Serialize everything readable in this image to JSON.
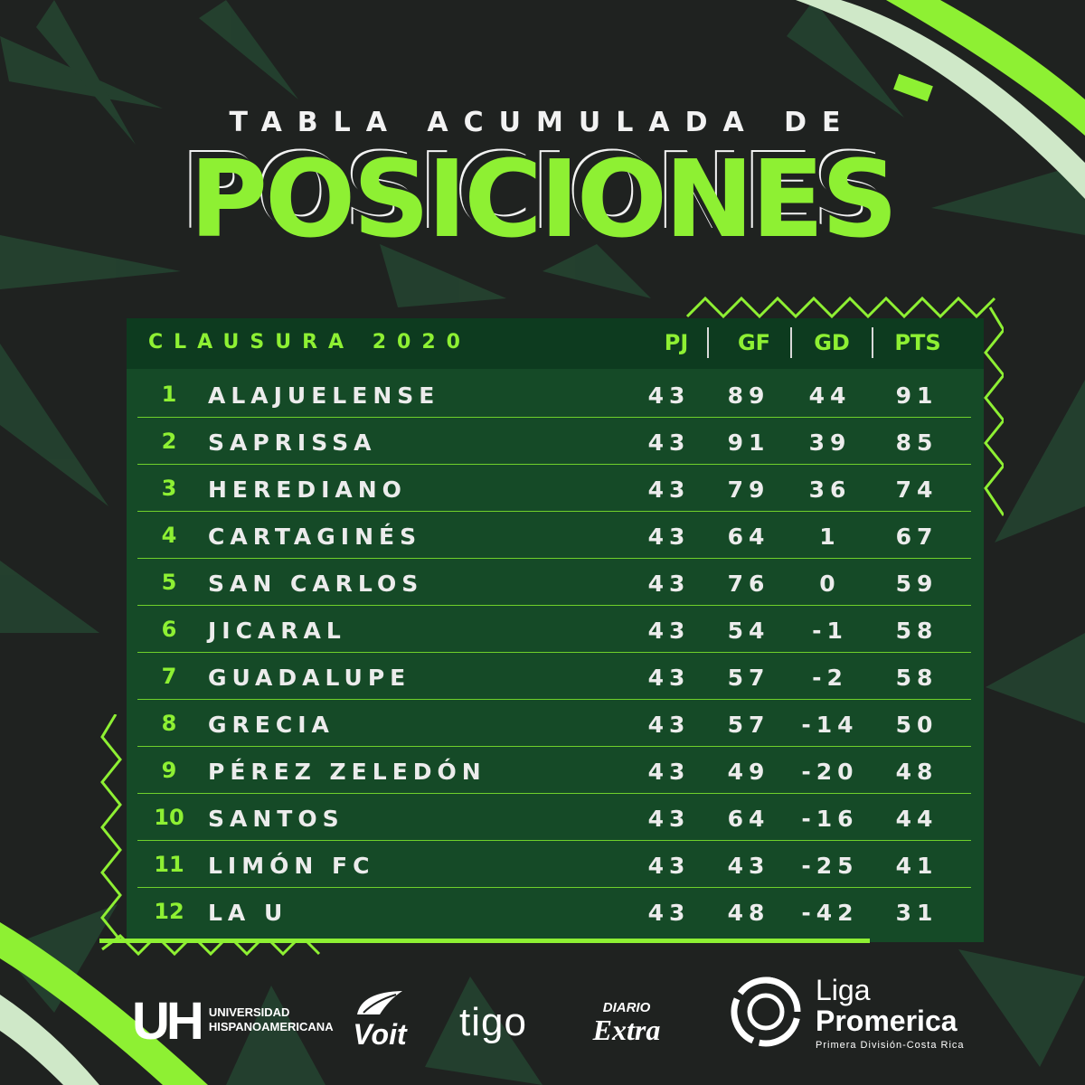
{
  "header": {
    "title_top": "TABLA ACUMULADA DE",
    "title_main": "POSICIONES"
  },
  "table": {
    "season_label": "CLAUSURA 2020",
    "columns": [
      "PJ",
      "GF",
      "GD",
      "PTS"
    ],
    "rows": [
      {
        "pos": "1",
        "team": "ALAJUELENSE",
        "pj": "43",
        "gf": "89",
        "gd": "44",
        "pts": "91"
      },
      {
        "pos": "2",
        "team": "SAPRISSA",
        "pj": "43",
        "gf": "91",
        "gd": "39",
        "pts": "85"
      },
      {
        "pos": "3",
        "team": "HEREDIANO",
        "pj": "43",
        "gf": "79",
        "gd": "36",
        "pts": "74"
      },
      {
        "pos": "4",
        "team": "CARTAGINÉS",
        "pj": "43",
        "gf": "64",
        "gd": "1",
        "pts": "67"
      },
      {
        "pos": "5",
        "team": "SAN CARLOS",
        "pj": "43",
        "gf": "76",
        "gd": "0",
        "pts": "59"
      },
      {
        "pos": "6",
        "team": "JICARAL",
        "pj": "43",
        "gf": "54",
        "gd": "-1",
        "pts": "58"
      },
      {
        "pos": "7",
        "team": "GUADALUPE",
        "pj": "43",
        "gf": "57",
        "gd": "-2",
        "pts": "58"
      },
      {
        "pos": "8",
        "team": "GRECIA",
        "pj": "43",
        "gf": "57",
        "gd": "-14",
        "pts": "50"
      },
      {
        "pos": "9",
        "team": "PÉREZ ZELEDÓN",
        "pj": "43",
        "gf": "49",
        "gd": "-20",
        "pts": "48"
      },
      {
        "pos": "10",
        "team": "SANTOS",
        "pj": "43",
        "gf": "64",
        "gd": "-16",
        "pts": "44"
      },
      {
        "pos": "11",
        "team": "LIMÓN FC",
        "pj": "43",
        "gf": "43",
        "gd": "-25",
        "pts": "41"
      },
      {
        "pos": "12",
        "team": "LA U",
        "pj": "43",
        "gf": "48",
        "gd": "-42",
        "pts": "31"
      }
    ]
  },
  "sponsors": {
    "uh_mark": "UH",
    "uh_line1": "UNIVERSIDAD",
    "uh_line2": "HISPANOAMERICANA",
    "voit": "Voit",
    "tigo": "tigo",
    "diario_line1": "DIARIO",
    "diario_line2": "Extra",
    "liga_line1": "Liga",
    "liga_line2": "Promerica",
    "liga_tagline": "Primera División-Costa Rica"
  },
  "colors": {
    "background": "#1f2220",
    "accent_green": "#8ef033",
    "panel_green": "#154a27",
    "header_green": "#0d3b1f",
    "text_light": "#ececec"
  }
}
